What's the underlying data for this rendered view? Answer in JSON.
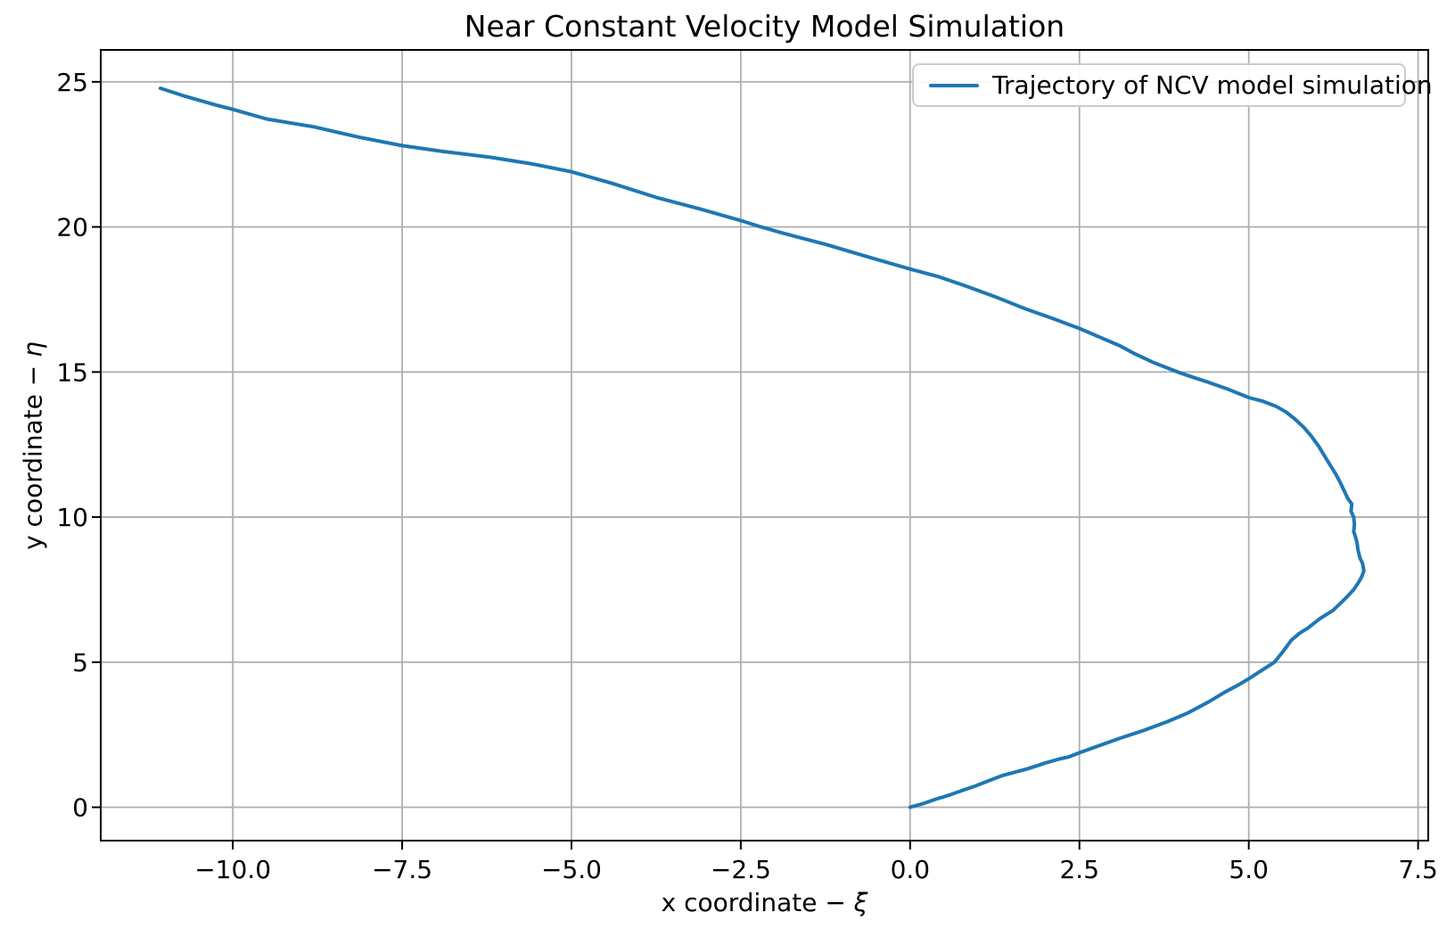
{
  "chart_data": {
    "type": "line",
    "title": "Near Constant Velocity Model Simulation",
    "xlabel": "x coordinate − ξ",
    "ylabel": "y coordinate − η",
    "xlabel_parts": {
      "text": "x coordinate − ",
      "symbol": "ξ"
    },
    "ylabel_parts": {
      "text": "y coordinate − ",
      "symbol": "η"
    },
    "legend": [
      "Trajectory of NCV model simulation"
    ],
    "legend_position": "upper right",
    "grid": true,
    "line_color": "#1f77b4",
    "grid_color": "#b0b0b0",
    "spine_color": "#000000",
    "legend_border_color": "#cccccc",
    "xlim": [
      -11.95,
      7.65
    ],
    "ylim": [
      -1.15,
      26.1
    ],
    "xticks": [
      -10.0,
      -7.5,
      -5.0,
      -2.5,
      0.0,
      2.5,
      5.0,
      7.5
    ],
    "xtick_labels": [
      "−10.0",
      "−7.5",
      "−5.0",
      "−2.5",
      "0.0",
      "2.5",
      "5.0",
      "7.5"
    ],
    "yticks": [
      0,
      5,
      10,
      15,
      20,
      25
    ],
    "ytick_labels": [
      "0",
      "5",
      "10",
      "15",
      "20",
      "25"
    ],
    "series": [
      {
        "name": "Trajectory of NCV model simulation",
        "points": [
          [
            0.0,
            0.0
          ],
          [
            0.2,
            0.13
          ],
          [
            0.38,
            0.28
          ],
          [
            0.58,
            0.42
          ],
          [
            0.77,
            0.58
          ],
          [
            0.95,
            0.72
          ],
          [
            1.1,
            0.86
          ],
          [
            1.25,
            0.99
          ],
          [
            1.37,
            1.1
          ],
          [
            1.55,
            1.21
          ],
          [
            1.74,
            1.33
          ],
          [
            2.0,
            1.53
          ],
          [
            2.2,
            1.66
          ],
          [
            2.35,
            1.74
          ],
          [
            2.5,
            1.88
          ],
          [
            2.8,
            2.13
          ],
          [
            3.1,
            2.38
          ],
          [
            3.44,
            2.64
          ],
          [
            3.8,
            2.95
          ],
          [
            4.1,
            3.25
          ],
          [
            4.4,
            3.62
          ],
          [
            4.65,
            3.97
          ],
          [
            4.85,
            4.22
          ],
          [
            5.0,
            4.43
          ],
          [
            5.2,
            4.73
          ],
          [
            5.38,
            5.0
          ],
          [
            5.5,
            5.35
          ],
          [
            5.63,
            5.76
          ],
          [
            5.75,
            6.0
          ],
          [
            5.87,
            6.17
          ],
          [
            6.05,
            6.5
          ],
          [
            6.24,
            6.78
          ],
          [
            6.35,
            7.02
          ],
          [
            6.45,
            7.25
          ],
          [
            6.55,
            7.5
          ],
          [
            6.62,
            7.75
          ],
          [
            6.67,
            7.95
          ],
          [
            6.7,
            8.15
          ],
          [
            6.68,
            8.4
          ],
          [
            6.64,
            8.6
          ],
          [
            6.61,
            8.9
          ],
          [
            6.6,
            9.1
          ],
          [
            6.58,
            9.28
          ],
          [
            6.55,
            9.5
          ],
          [
            6.56,
            9.75
          ],
          [
            6.55,
            10.0
          ],
          [
            6.51,
            10.2
          ],
          [
            6.52,
            10.45
          ],
          [
            6.46,
            10.65
          ],
          [
            6.4,
            10.95
          ],
          [
            6.35,
            11.2
          ],
          [
            6.28,
            11.5
          ],
          [
            6.22,
            11.72
          ],
          [
            6.12,
            12.1
          ],
          [
            6.03,
            12.45
          ],
          [
            5.92,
            12.8
          ],
          [
            5.81,
            13.1
          ],
          [
            5.68,
            13.38
          ],
          [
            5.55,
            13.62
          ],
          [
            5.4,
            13.82
          ],
          [
            5.2,
            14.0
          ],
          [
            5.0,
            14.12
          ],
          [
            4.7,
            14.4
          ],
          [
            4.4,
            14.65
          ],
          [
            4.2,
            14.8
          ],
          [
            3.95,
            15.0
          ],
          [
            3.6,
            15.32
          ],
          [
            3.3,
            15.65
          ],
          [
            3.1,
            15.9
          ],
          [
            2.8,
            16.2
          ],
          [
            2.5,
            16.5
          ],
          [
            2.1,
            16.85
          ],
          [
            1.7,
            17.18
          ],
          [
            1.25,
            17.6
          ],
          [
            0.8,
            17.98
          ],
          [
            0.4,
            18.3
          ],
          [
            0.0,
            18.55
          ],
          [
            -0.6,
            18.95
          ],
          [
            -1.25,
            19.4
          ],
          [
            -1.9,
            19.8
          ],
          [
            -2.2,
            20.0
          ],
          [
            -2.5,
            20.22
          ],
          [
            -3.1,
            20.62
          ],
          [
            -3.75,
            21.02
          ],
          [
            -4.4,
            21.5
          ],
          [
            -5.0,
            21.9
          ],
          [
            -5.6,
            22.18
          ],
          [
            -6.2,
            22.4
          ],
          [
            -6.9,
            22.6
          ],
          [
            -7.5,
            22.8
          ],
          [
            -8.15,
            23.1
          ],
          [
            -8.8,
            23.45
          ],
          [
            -9.5,
            23.72
          ],
          [
            -10.0,
            24.05
          ],
          [
            -10.25,
            24.2
          ],
          [
            -10.7,
            24.5
          ],
          [
            -11.07,
            24.78
          ]
        ]
      }
    ]
  }
}
